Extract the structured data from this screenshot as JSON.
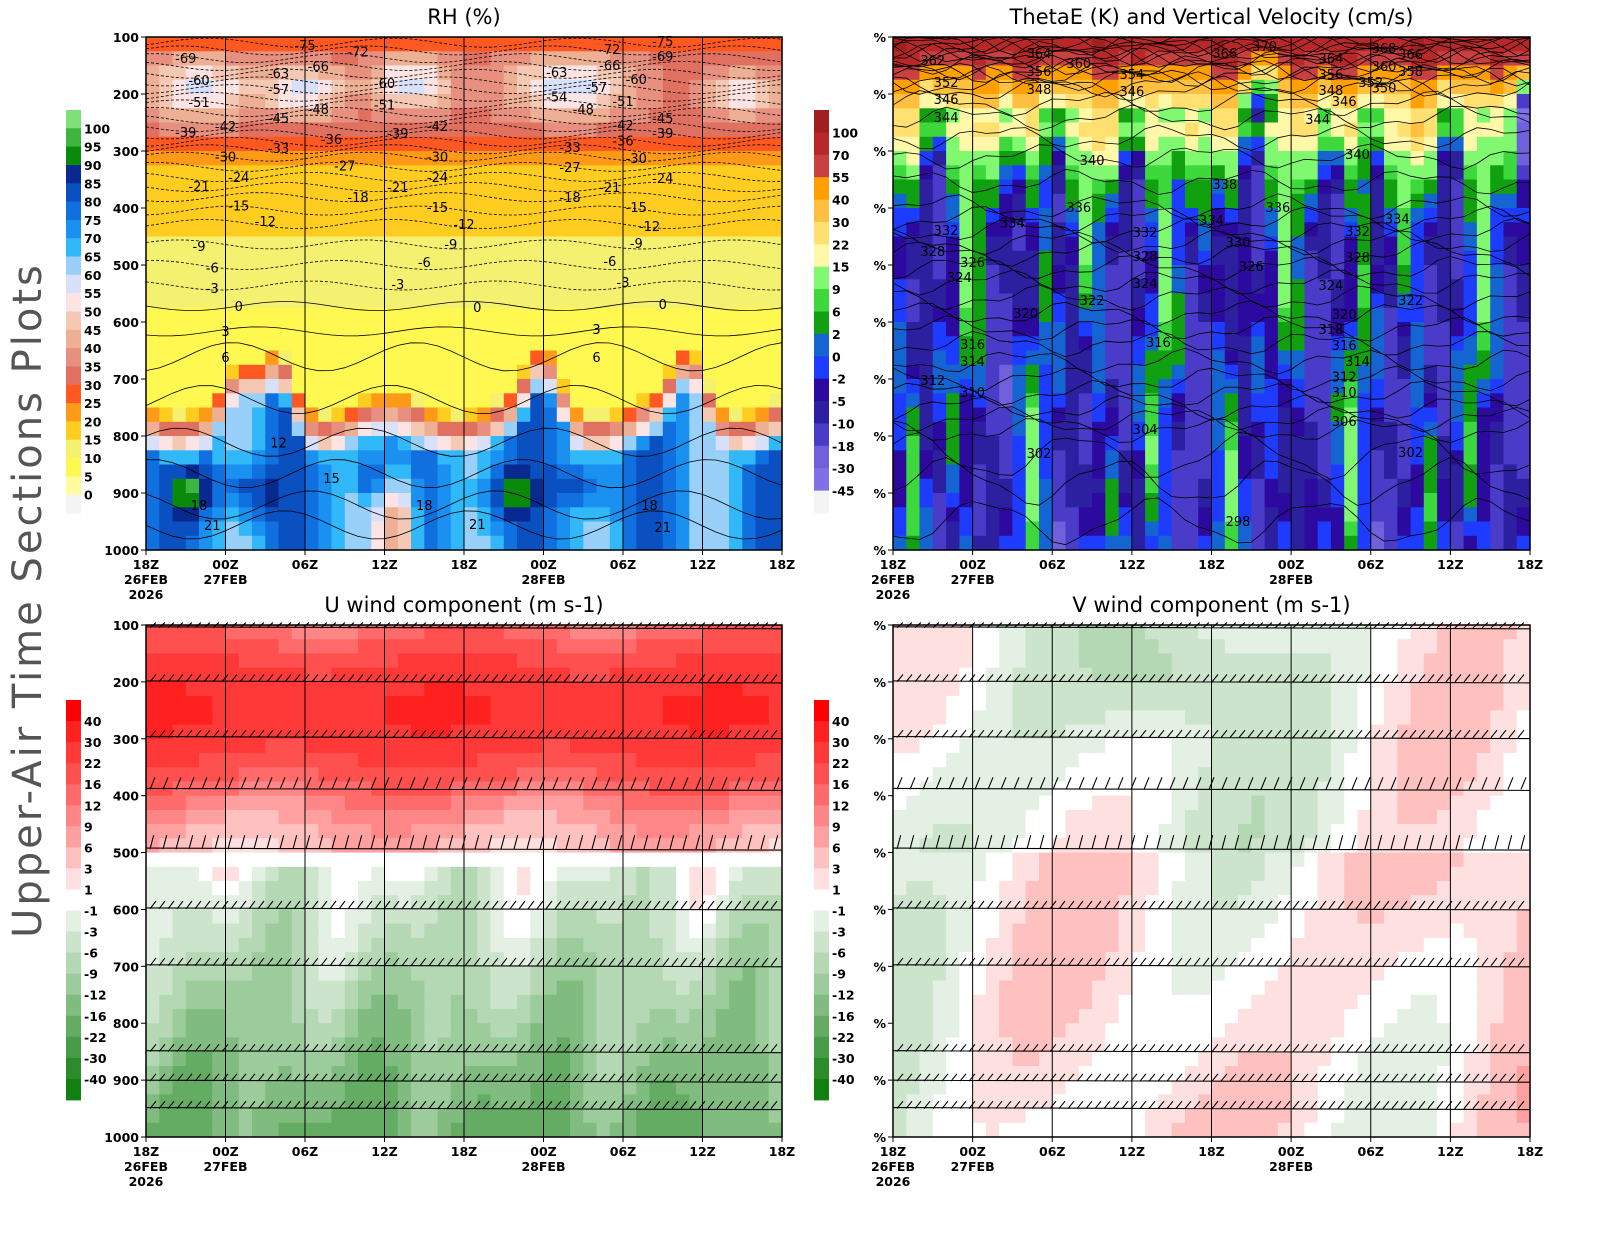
{
  "side_title": "Upper-Air Time Sections Plots",
  "time_axis": {
    "ticks": [
      {
        "time": "26/18Z",
        "hour": "18Z",
        "day": "26FEB",
        "year": "2026"
      },
      {
        "time": "27/00Z",
        "hour": "00Z",
        "day": "27FEB"
      },
      {
        "time": "27/06Z",
        "hour": "06Z"
      },
      {
        "time": "27/12Z",
        "hour": "12Z"
      },
      {
        "time": "27/18Z",
        "hour": "18Z"
      },
      {
        "time": "28/00Z",
        "hour": "00Z",
        "day": "28FEB"
      },
      {
        "time": "28/06Z",
        "hour": "06Z"
      },
      {
        "time": "28/12Z",
        "hour": "12Z"
      },
      {
        "time": "28/18Z",
        "hour": "18Z"
      }
    ]
  },
  "chart_data": [
    {
      "type": "heatmap",
      "title": "RH (%)",
      "xlim": [
        "26/18Z",
        "28/18Z"
      ],
      "ylim": [
        1000,
        100
      ],
      "y_ticks": [
        100,
        200,
        300,
        400,
        500,
        600,
        700,
        800,
        900,
        1000
      ],
      "y_tick_labels": [
        "100",
        "200",
        "300",
        "400",
        "500",
        "600",
        "700",
        "800",
        "900",
        "1000"
      ],
      "grid": "vertical lines every 6 h",
      "overlay": "temperature contours (°C), dashed below 0",
      "colorbar": {
        "labels": [
          "100",
          "95",
          "90",
          "85",
          "80",
          "75",
          "70",
          "65",
          "60",
          "55",
          "50",
          "45",
          "40",
          "35",
          "30",
          "25",
          "20",
          "15",
          "10",
          "5",
          "0"
        ],
        "colors": [
          "#7de07a",
          "#3fb43f",
          "#0a8a0a",
          "#08298f",
          "#0a50c0",
          "#1070e0",
          "#1a90f0",
          "#30b8f8",
          "#98d0fa",
          "#d8e0fa",
          "#fde4e4",
          "#f5c8b4",
          "#eeb094",
          "#e89080",
          "#e07060",
          "#ff5820",
          "#ff9a18",
          "#ffcc20",
          "#f4f070",
          "#fff850",
          "#fffca0",
          "#f4f4f4"
        ]
      },
      "contour_labels": [
        [
          "26/21Z",
          137,
          "-69"
        ],
        [
          "27/06Z",
          114,
          "-75"
        ],
        [
          "27/10Z",
          125,
          "-72"
        ],
        [
          "26/22Z",
          175,
          "-60"
        ],
        [
          "27/04Z",
          163,
          "-63"
        ],
        [
          "27/07Z",
          151,
          "-66"
        ],
        [
          "26/22Z",
          214,
          "-51"
        ],
        [
          "27/04Z",
          191,
          "-57"
        ],
        [
          "27/07Z",
          226,
          "-48"
        ],
        [
          "27/12Z",
          181,
          "-60"
        ],
        [
          "27/12Z",
          218,
          "-51"
        ],
        [
          "27/04Z",
          242,
          "-45"
        ],
        [
          "26/21Z",
          267,
          "-39"
        ],
        [
          "27/00Z",
          256,
          "-42"
        ],
        [
          "27/08Z",
          279,
          "-36"
        ],
        [
          "27/04Z",
          295,
          "-33"
        ],
        [
          "27/13Z",
          268,
          "-39"
        ],
        [
          "27/16Z",
          256,
          "-42"
        ],
        [
          "27/00Z",
          310,
          "-30"
        ],
        [
          "27/16Z",
          310,
          "-30"
        ],
        [
          "27/09Z",
          325,
          "-27"
        ],
        [
          "27/01Z",
          346,
          "-24"
        ],
        [
          "26/22Z",
          361,
          "-21"
        ],
        [
          "27/13Z",
          363,
          "-21"
        ],
        [
          "27/16Z",
          346,
          "-24"
        ],
        [
          "27/10Z",
          381,
          "-18"
        ],
        [
          "27/01Z",
          396,
          "-15"
        ],
        [
          "27/16Z",
          398,
          "-15"
        ],
        [
          "27/03Z",
          423,
          "-12"
        ],
        [
          "27/18Z",
          428,
          "-12"
        ],
        [
          "26/22Z",
          467,
          "-9"
        ],
        [
          "27/17Z",
          463,
          "-9"
        ],
        [
          "26/23Z",
          504,
          "-6"
        ],
        [
          "27/15Z",
          495,
          "-6"
        ],
        [
          "26/23Z",
          540,
          "-3"
        ],
        [
          "27/13Z",
          533,
          "-3"
        ],
        [
          "27/01Z",
          572,
          "0"
        ],
        [
          "27/19Z",
          574,
          "0"
        ],
        [
          "27/00Z",
          616,
          "3"
        ],
        [
          "27/00Z",
          661,
          "6"
        ],
        [
          "27/04Z",
          811,
          "12"
        ],
        [
          "27/08Z",
          874,
          "15"
        ],
        [
          "26/22Z",
          921,
          "18"
        ],
        [
          "26/23Z",
          956,
          "21"
        ],
        [
          "27/15Z",
          921,
          "18"
        ],
        [
          "27/19Z",
          954,
          "21"
        ],
        [
          "28/05Z",
          121,
          "-72"
        ],
        [
          "28/09Z",
          107,
          "-75"
        ],
        [
          "28/05Z",
          149,
          "-66"
        ],
        [
          "28/09Z",
          133,
          "-69"
        ],
        [
          "28/01Z",
          161,
          "-63"
        ],
        [
          "28/04Z",
          188,
          "-57"
        ],
        [
          "28/07Z",
          174,
          "-60"
        ],
        [
          "28/01Z",
          204,
          "-54"
        ],
        [
          "28/03Z",
          226,
          "-48"
        ],
        [
          "28/06Z",
          212,
          "-51"
        ],
        [
          "28/09Z",
          242,
          "-45"
        ],
        [
          "28/06Z",
          254,
          "-42"
        ],
        [
          "28/09Z",
          268,
          "-39"
        ],
        [
          "28/06Z",
          282,
          "-36"
        ],
        [
          "28/02Z",
          293,
          "-33"
        ],
        [
          "28/07Z",
          312,
          "-30"
        ],
        [
          "28/02Z",
          328,
          "-27"
        ],
        [
          "28/09Z",
          347,
          "-24"
        ],
        [
          "28/05Z",
          363,
          "-21"
        ],
        [
          "28/02Z",
          381,
          "-18"
        ],
        [
          "28/07Z",
          398,
          "-15"
        ],
        [
          "28/08Z",
          432,
          "-12"
        ],
        [
          "28/07Z",
          461,
          "-9"
        ],
        [
          "28/05Z",
          493,
          "-6"
        ],
        [
          "28/06Z",
          530,
          "-3"
        ],
        [
          "28/09Z",
          568,
          "0"
        ],
        [
          "28/04Z",
          612,
          "3"
        ],
        [
          "28/04Z",
          661,
          "6"
        ],
        [
          "28/08Z",
          921,
          "18"
        ],
        [
          "28/09Z",
          960,
          "21"
        ]
      ]
    },
    {
      "type": "heatmap",
      "title": "ThetaE (K) and Vertical Velocity (cm/s)",
      "xlim": [
        "26/18Z",
        "28/18Z"
      ],
      "ylim": [
        1000,
        100
      ],
      "y_ticks": [
        100,
        200,
        300,
        400,
        500,
        600,
        700,
        800,
        900,
        1000
      ],
      "y_tick_labels": [
        "%",
        "%",
        "%",
        "%",
        "%",
        "%",
        "%",
        "%",
        "%",
        "%"
      ],
      "grid": "vertical lines every 6 h",
      "overlay": "ThetaE contours (K)",
      "colorbar": {
        "labels": [
          "100",
          "70",
          "55",
          "40",
          "30",
          "22",
          "15",
          "9",
          "6",
          "2",
          "0",
          "-2",
          "-5",
          "-10",
          "-18",
          "-30",
          "-45"
        ],
        "colors": [
          "#a02020",
          "#b82828",
          "#c84040",
          "#ffa000",
          "#ffc040",
          "#ffe070",
          "#fff8a8",
          "#80f870",
          "#3cd83c",
          "#10a010",
          "#1464d2",
          "#1e3cff",
          "#2c0aa0",
          "#2c20a0",
          "#4a3cc8",
          "#7060dc",
          "#8070e8",
          "#f4f4f4"
        ]
      },
      "contour_labels": [
        [
          "26/21Z",
          140,
          "362"
        ],
        [
          "27/05Z",
          128,
          "364"
        ],
        [
          "27/19Z",
          128,
          "366"
        ],
        [
          "27/22Z",
          116,
          "370"
        ],
        [
          "28/03Z",
          137,
          "364"
        ],
        [
          "28/07Z",
          119,
          "368"
        ],
        [
          "28/09Z",
          130,
          "366"
        ],
        [
          "27/08Z",
          146,
          "360"
        ],
        [
          "27/05Z",
          160,
          "356"
        ],
        [
          "27/12Z",
          165,
          "354"
        ],
        [
          "28/03Z",
          165,
          "356"
        ],
        [
          "28/07Z",
          151,
          "360"
        ],
        [
          "28/09Z",
          160,
          "358"
        ],
        [
          "26/22Z",
          179,
          "352"
        ],
        [
          "27/05Z",
          191,
          "348"
        ],
        [
          "27/12Z",
          195,
          "346"
        ],
        [
          "28/03Z",
          193,
          "348"
        ],
        [
          "28/06Z",
          179,
          "352"
        ],
        [
          "28/07Z",
          189,
          "350"
        ],
        [
          "26/22Z",
          209,
          "346"
        ],
        [
          "28/04Z",
          212,
          "346"
        ],
        [
          "26/22Z",
          240,
          "344"
        ],
        [
          "28/02Z",
          244,
          "344"
        ],
        [
          "27/09Z",
          316,
          "340"
        ],
        [
          "28/05Z",
          305,
          "340"
        ],
        [
          "27/19Z",
          358,
          "338"
        ],
        [
          "27/08Z",
          398,
          "336"
        ],
        [
          "27/23Z",
          398,
          "336"
        ],
        [
          "27/03Z",
          425,
          "334"
        ],
        [
          "27/18Z",
          421,
          "334"
        ],
        [
          "28/08Z",
          418,
          "334"
        ],
        [
          "26/22Z",
          439,
          "332"
        ],
        [
          "27/13Z",
          442,
          "332"
        ],
        [
          "28/05Z",
          440,
          "332"
        ],
        [
          "27/20Z",
          460,
          "330"
        ],
        [
          "26/21Z",
          475,
          "328"
        ],
        [
          "27/13Z",
          484,
          "328"
        ],
        [
          "28/05Z",
          486,
          "328"
        ],
        [
          "27/00Z",
          495,
          "326"
        ],
        [
          "27/21Z",
          502,
          "326"
        ],
        [
          "26/23Z",
          521,
          "324"
        ],
        [
          "27/13Z",
          532,
          "324"
        ],
        [
          "28/03Z",
          535,
          "324"
        ],
        [
          "27/09Z",
          561,
          "322"
        ],
        [
          "28/09Z",
          561,
          "322"
        ],
        [
          "27/04Z",
          584,
          "320"
        ],
        [
          "28/04Z",
          586,
          "320"
        ],
        [
          "28/03Z",
          612,
          "318"
        ],
        [
          "27/00Z",
          639,
          "316"
        ],
        [
          "27/14Z",
          635,
          "316"
        ],
        [
          "28/04Z",
          640,
          "316"
        ],
        [
          "27/00Z",
          668,
          "314"
        ],
        [
          "28/05Z",
          668,
          "314"
        ],
        [
          "26/21Z",
          702,
          "312"
        ],
        [
          "28/04Z",
          696,
          "312"
        ],
        [
          "27/00Z",
          723,
          "310"
        ],
        [
          "28/04Z",
          723,
          "310"
        ],
        [
          "28/04Z",
          774,
          "306"
        ],
        [
          "27/13Z",
          788,
          "304"
        ],
        [
          "27/05Z",
          830,
          "302"
        ],
        [
          "28/09Z",
          828,
          "302"
        ],
        [
          "27/20Z",
          949,
          "298"
        ]
      ]
    },
    {
      "type": "heatmap",
      "title": "U wind component (m s-1)",
      "xlim": [
        "26/18Z",
        "28/18Z"
      ],
      "ylim": [
        1000,
        100
      ],
      "y_ticks": [
        100,
        200,
        300,
        400,
        500,
        600,
        700,
        800,
        900,
        1000
      ],
      "y_tick_labels": [
        "100",
        "200",
        "300",
        "400",
        "500",
        "600",
        "700",
        "800",
        "900",
        "1000"
      ],
      "grid": "vertical lines every 6 h",
      "overlay": "wind barbs",
      "colorbar": {
        "labels": [
          "40",
          "30",
          "22",
          "16",
          "12",
          "9",
          "6",
          "3",
          "1",
          "-1",
          "-3",
          "-6",
          "-9",
          "-12",
          "-16",
          "-22",
          "-30",
          "-40"
        ],
        "colors": [
          "#ff0000",
          "#ff2020",
          "#ff3838",
          "#ff5050",
          "#ff6a6a",
          "#ff8686",
          "#ffa0a0",
          "#ffc0c0",
          "#ffe0e0",
          "#ffffff",
          "#e4f0e4",
          "#cce4cc",
          "#b4d8b4",
          "#9ccc9c",
          "#80bc80",
          "#64ac64",
          "#489c48",
          "#2c8c2c",
          "#108010"
        ]
      }
    },
    {
      "type": "heatmap",
      "title": "V wind component (m s-1)",
      "xlim": [
        "26/18Z",
        "28/18Z"
      ],
      "ylim": [
        1000,
        100
      ],
      "y_ticks": [
        100,
        200,
        300,
        400,
        500,
        600,
        700,
        800,
        900,
        1000
      ],
      "y_tick_labels": [
        "%",
        "%",
        "%",
        "%",
        "%",
        "%",
        "%",
        "%",
        "%",
        "%"
      ],
      "grid": "vertical lines every 6 h",
      "overlay": "wind barbs",
      "colorbar": {
        "labels": [
          "40",
          "30",
          "22",
          "16",
          "12",
          "9",
          "6",
          "3",
          "1",
          "-1",
          "-3",
          "-6",
          "-9",
          "-12",
          "-16",
          "-22",
          "-30",
          "-40"
        ],
        "colors": [
          "#ff0000",
          "#ff2020",
          "#ff3838",
          "#ff5050",
          "#ff6a6a",
          "#ff8686",
          "#ffa0a0",
          "#ffc0c0",
          "#ffe0e0",
          "#ffffff",
          "#e4f0e4",
          "#cce4cc",
          "#b4d8b4",
          "#9ccc9c",
          "#80bc80",
          "#64ac64",
          "#489c48",
          "#2c8c2c",
          "#108010"
        ]
      }
    }
  ]
}
